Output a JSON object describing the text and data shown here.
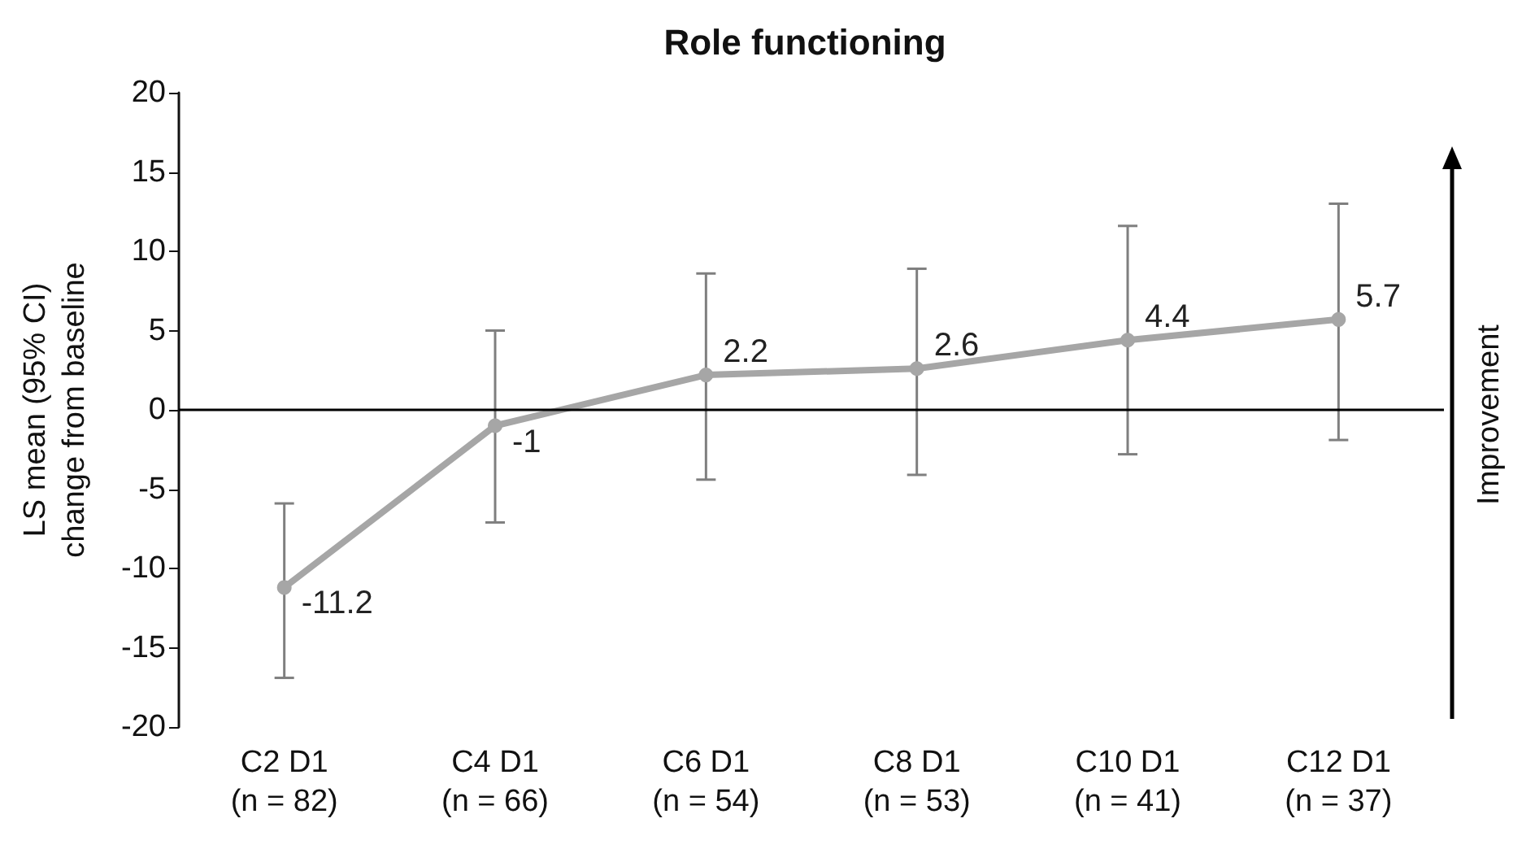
{
  "chart_data": {
    "type": "line",
    "title": "Role functioning",
    "ylabel": "LS mean (95% CI)\nchange from baseline",
    "categories": [
      "C2 D1\n(n = 82)",
      "C4 D1\n(n = 66)",
      "C6 D1\n(n = 54)",
      "C8 D1\n(n = 53)",
      "C10 D1\n(n = 41)",
      "C12 D1\n(n = 37)"
    ],
    "series": [
      {
        "color": "#a6a6a6",
        "values": [
          -11.2,
          -1,
          2.2,
          2.6,
          4.4,
          5.7
        ],
        "errors": [
          [
            -16.9,
            -5.9
          ],
          [
            -7.1,
            5.0
          ],
          [
            -4.4,
            8.6
          ],
          [
            -4.1,
            8.9
          ],
          [
            -2.8,
            11.6
          ],
          [
            -1.9,
            13.0
          ]
        ]
      }
    ],
    "ylim": [
      -20,
      20
    ],
    "yticks": [
      -20,
      -15,
      -10,
      -5,
      0,
      5,
      10,
      15,
      20
    ],
    "ref_lines": [
      {
        "axis": "y",
        "value": 0,
        "color": "#000000"
      }
    ],
    "annotations": [
      "Improvement"
    ],
    "data_labels": true,
    "marker": "circle",
    "line_style": "solid"
  }
}
